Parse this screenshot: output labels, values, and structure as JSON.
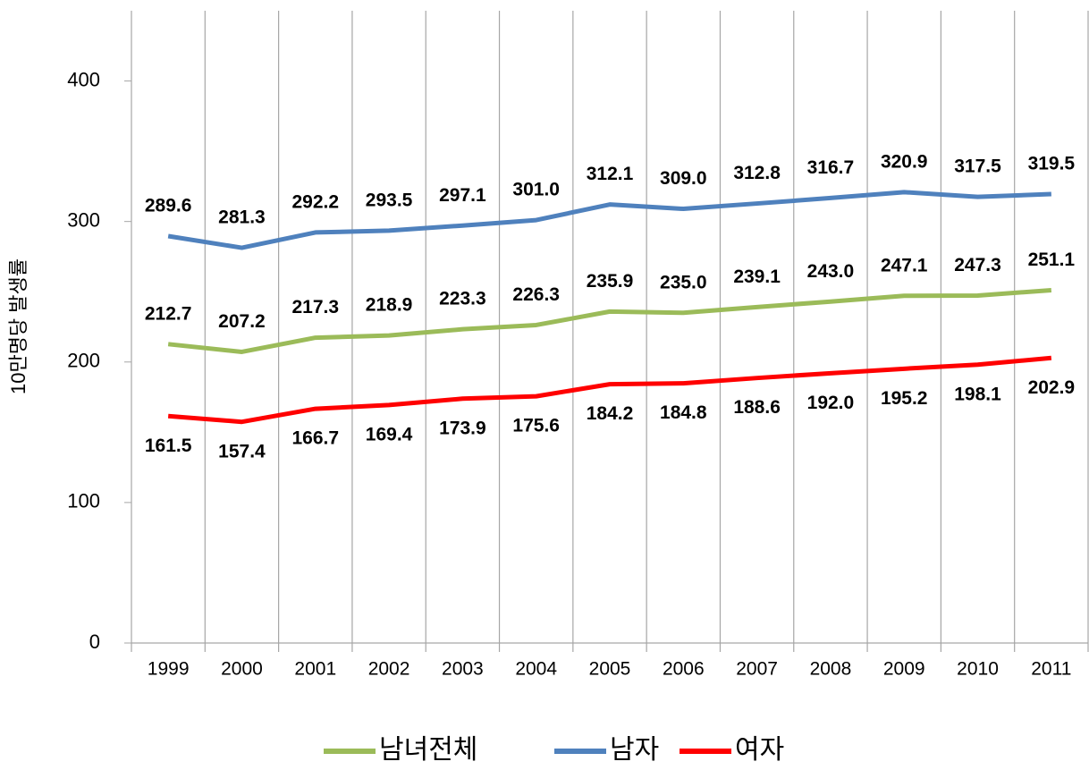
{
  "chart_data": {
    "type": "line",
    "y_label": "10만명당 발생률",
    "categories": [
      "1999",
      "2000",
      "2001",
      "2002",
      "2003",
      "2004",
      "2005",
      "2006",
      "2007",
      "2008",
      "2009",
      "2010",
      "2011"
    ],
    "series": [
      {
        "name": "남녀전체",
        "color": "#9bbb59",
        "label_pos": "above",
        "values": [
          212.7,
          207.2,
          217.3,
          218.9,
          223.3,
          226.3,
          235.9,
          235.0,
          239.1,
          243.0,
          247.1,
          247.3,
          251.1
        ],
        "value_labels": [
          "212.7",
          "207.2",
          "217.3",
          "218.9",
          "223.3",
          "226.3",
          "235.9",
          "235.0",
          "239.1",
          "243.0",
          "247.1",
          "247.3",
          "251.1"
        ]
      },
      {
        "name": "남자",
        "color": "#4f81bd",
        "label_pos": "above",
        "values": [
          289.6,
          281.3,
          292.2,
          293.5,
          297.1,
          301.0,
          312.1,
          309.0,
          312.8,
          316.7,
          320.9,
          317.5,
          319.5
        ],
        "value_labels": [
          "289.6",
          "281.3",
          "292.2",
          "293.5",
          "297.1",
          "301.0",
          "312.1",
          "309.0",
          "312.8",
          "316.7",
          "320.9",
          "317.5",
          "319.5"
        ]
      },
      {
        "name": "여자",
        "color": "#ff0000",
        "label_pos": "below",
        "values": [
          161.5,
          157.4,
          166.7,
          169.4,
          173.9,
          175.6,
          184.2,
          184.8,
          188.6,
          192.0,
          195.2,
          198.1,
          202.9
        ],
        "value_labels": [
          "161.5",
          "157.4",
          "166.7",
          "169.4",
          "173.9",
          "175.6",
          "184.2",
          "184.8",
          "188.6",
          "192.0",
          "195.2",
          "198.1",
          "202.9"
        ]
      }
    ],
    "ylim": [
      0,
      450
    ],
    "yticks": [
      0,
      100,
      200,
      300,
      400
    ],
    "grid": "x",
    "legend": "bottom"
  }
}
